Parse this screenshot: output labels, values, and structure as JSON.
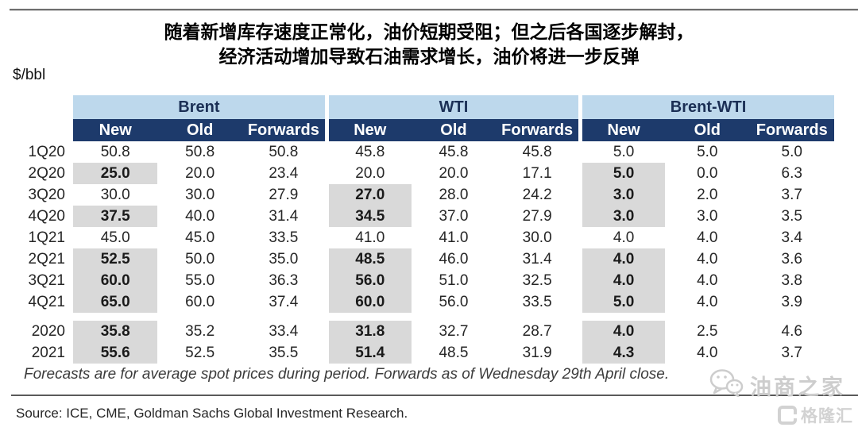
{
  "page": {
    "title_line1": "随着新增库存速度正常化，油价短期受阻；但之后各国逐步解封，",
    "title_line2": "经济活动增加导致石油需求增长，油价将进一步反弹",
    "unit_label": "$/bbl",
    "footnote": "Forecasts are for average spot prices during period. Forwards as of Wednesday 29th April close.",
    "source": "Source: ICE, CME, Goldman Sachs Global Investment Research.",
    "watermark_wechat_text": "油商之家",
    "watermark_logo_text": "格隆汇"
  },
  "icons": {
    "watermark_icon": "wechat-icon",
    "logo_icon": "gelonghui-logo-icon"
  },
  "colors": {
    "group_header_blue": "#bdd8ec",
    "subheader_navy": "#1d3a6b",
    "highlight_gray": "#d9d9d9",
    "watermark_gray": "#cdcdcd"
  },
  "chart_data": {
    "type": "table",
    "title": "随着新增库存速度正常化，油价短期受阻；但之后各国逐步解封，经济活动增加导致石油需求增长，油价将进一步反弹",
    "unit": "$/bbl",
    "column_groups": [
      "Brent",
      "WTI",
      "Brent-WTI"
    ],
    "columns": [
      "New",
      "Old",
      "Forwards"
    ],
    "row_labels": [
      "1Q20",
      "2Q20",
      "3Q20",
      "4Q20",
      "1Q21",
      "2Q21",
      "3Q21",
      "4Q21",
      "2020",
      "2021"
    ],
    "rows": [
      {
        "label": "1Q20",
        "values": [
          "50.8",
          "50.8",
          "50.8",
          "45.8",
          "45.8",
          "45.8",
          "5.0",
          "5.0",
          "5.0"
        ],
        "highlighted": [
          false,
          false,
          false,
          false,
          false,
          false,
          false,
          false,
          false
        ]
      },
      {
        "label": "2Q20",
        "values": [
          "25.0",
          "20.0",
          "23.4",
          "20.0",
          "20.0",
          "17.1",
          "5.0",
          "0.0",
          "6.3"
        ],
        "highlighted": [
          true,
          false,
          false,
          false,
          false,
          false,
          true,
          false,
          false
        ]
      },
      {
        "label": "3Q20",
        "values": [
          "30.0",
          "30.0",
          "27.9",
          "27.0",
          "28.0",
          "24.2",
          "3.0",
          "2.0",
          "3.7"
        ],
        "highlighted": [
          false,
          false,
          false,
          true,
          false,
          false,
          true,
          false,
          false
        ]
      },
      {
        "label": "4Q20",
        "values": [
          "37.5",
          "40.0",
          "31.4",
          "34.5",
          "37.0",
          "27.9",
          "3.0",
          "3.0",
          "3.5"
        ],
        "highlighted": [
          true,
          false,
          false,
          true,
          false,
          false,
          true,
          false,
          false
        ]
      },
      {
        "label": "1Q21",
        "values": [
          "45.0",
          "45.0",
          "33.5",
          "41.0",
          "41.0",
          "30.0",
          "4.0",
          "4.0",
          "3.4"
        ],
        "highlighted": [
          false,
          false,
          false,
          false,
          false,
          false,
          false,
          false,
          false
        ]
      },
      {
        "label": "2Q21",
        "values": [
          "52.5",
          "50.0",
          "35.0",
          "48.5",
          "46.0",
          "31.4",
          "4.0",
          "4.0",
          "3.6"
        ],
        "highlighted": [
          true,
          false,
          false,
          true,
          false,
          false,
          true,
          false,
          false
        ]
      },
      {
        "label": "3Q21",
        "values": [
          "60.0",
          "55.0",
          "36.3",
          "56.0",
          "51.0",
          "32.5",
          "4.0",
          "4.0",
          "3.8"
        ],
        "highlighted": [
          true,
          false,
          false,
          true,
          false,
          false,
          true,
          false,
          false
        ]
      },
      {
        "label": "4Q21",
        "values": [
          "65.0",
          "60.0",
          "37.4",
          "60.0",
          "56.0",
          "33.5",
          "5.0",
          "4.0",
          "3.9"
        ],
        "highlighted": [
          true,
          false,
          false,
          true,
          false,
          false,
          true,
          false,
          false
        ]
      },
      {
        "label": "2020",
        "spacer_before": true,
        "values": [
          "35.8",
          "35.2",
          "33.4",
          "31.8",
          "32.7",
          "28.7",
          "4.0",
          "2.5",
          "4.6"
        ],
        "highlighted": [
          true,
          false,
          false,
          true,
          false,
          false,
          true,
          false,
          false
        ]
      },
      {
        "label": "2021",
        "values": [
          "55.6",
          "52.5",
          "35.5",
          "51.4",
          "48.5",
          "31.9",
          "4.3",
          "4.0",
          "3.7"
        ],
        "highlighted": [
          true,
          false,
          false,
          true,
          false,
          false,
          true,
          false,
          false
        ]
      }
    ],
    "footnote": "Forecasts are for average spot prices during period. Forwards as of Wednesday 29th April close.",
    "source": "Source: ICE, CME, Goldman Sachs Global Investment Research.",
    "layout": {
      "highlight_meaning": "revised (New) forecast cells shaded gray and bold",
      "grid": false
    }
  }
}
